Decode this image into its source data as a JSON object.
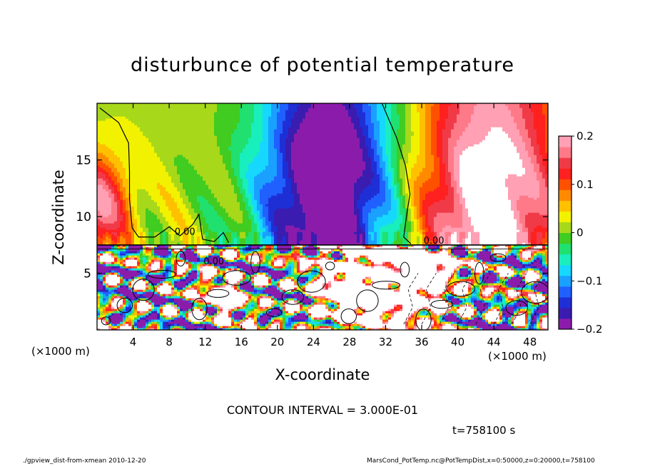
{
  "chart_data": {
    "type": "heatmap",
    "title": "disturbunce of potential temperature",
    "xlabel": "X-coordinate",
    "ylabel": "Z-coordinate",
    "x_unit_label": "(×1000 m)",
    "xlim": [
      0,
      50
    ],
    "ylim": [
      0,
      20
    ],
    "x_ticks": [
      4,
      8,
      12,
      16,
      20,
      24,
      28,
      32,
      36,
      40,
      44,
      48
    ],
    "y_ticks": [
      5,
      10,
      15
    ],
    "colorbar": {
      "range": [
        -0.2,
        0.2
      ],
      "tick_values": [
        0.2,
        0.1,
        0,
        -0.1,
        -0.2
      ],
      "tick_labels": [
        "0.2",
        "0.1",
        "0",
        "−0.1",
        "−0.2"
      ],
      "colors": [
        "#8b1cab",
        "#3a1cb0",
        "#1f2fd6",
        "#2060ff",
        "#1aa0ff",
        "#16d8ff",
        "#19eebd",
        "#20e070",
        "#40cc20",
        "#a8d81a",
        "#f2f200",
        "#ffc000",
        "#ff8a00",
        "#ff5000",
        "#ff2020",
        "#f03a48",
        "#ff7a88",
        "#ffa0b4"
      ]
    },
    "contour_labels": [
      "0.00",
      "0.00",
      "0.00"
    ],
    "contour_interval_text": "CONTOUR INTERVAL = 3.000E-01",
    "time_text": "t=758100 s",
    "grid": false,
    "legend": "colorbar right"
  },
  "footer": {
    "left": "./gpview_dist-from-xmean  2010-12-20",
    "right": "MarsCond_PotTemp.nc@PotTempDist,x=0:50000,z=0:20000,t=758100"
  }
}
